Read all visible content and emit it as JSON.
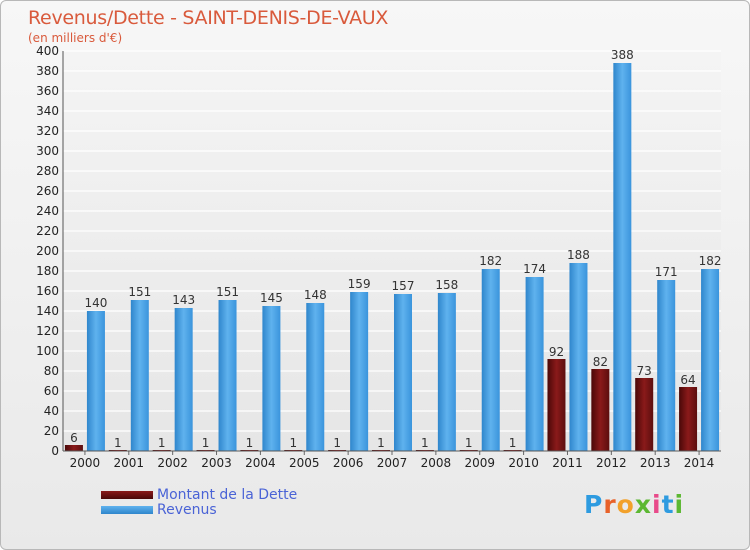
{
  "chart_data": {
    "type": "bar",
    "title": "Revenus/Dette - SAINT-DENIS-DE-VAUX",
    "subtitle": "(en milliers d'€)",
    "categories": [
      "2000",
      "2001",
      "2002",
      "2003",
      "2004",
      "2005",
      "2006",
      "2007",
      "2008",
      "2009",
      "2010",
      "2011",
      "2012",
      "2013",
      "2014"
    ],
    "series": [
      {
        "name": "Montant de la Dette",
        "color": "#6b0f0f",
        "values": [
          6,
          1,
          1,
          1,
          1,
          1,
          1,
          1,
          1,
          1,
          1,
          92,
          82,
          73,
          64
        ]
      },
      {
        "name": "Revenus",
        "color": "#3d95dc",
        "values": [
          140,
          151,
          143,
          151,
          145,
          148,
          159,
          157,
          158,
          182,
          174,
          188,
          388,
          171,
          182
        ]
      }
    ],
    "ylim": [
      0,
      400
    ],
    "ytick_step": 20,
    "grid": true,
    "legend_position": "bottom-left"
  },
  "logo": {
    "text": "Proxiti"
  }
}
